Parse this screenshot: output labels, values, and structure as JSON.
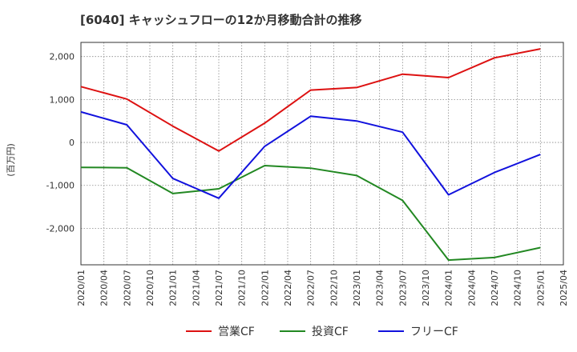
{
  "chart_data": {
    "type": "line",
    "title": "[6040]  キャッシュフローの12か月移動合計の推移",
    "ylabel": "(百万円)",
    "xlabel": "",
    "ylim": [
      -2850,
      2330
    ],
    "yticks": [
      2000,
      1000,
      0,
      -1000,
      -2000
    ],
    "ytick_labels": [
      "2,000",
      "1,000",
      "0",
      "-1,000",
      "-2,000"
    ],
    "categories": [
      "2020/01",
      "2020/04",
      "2020/07",
      "2020/10",
      "2021/01",
      "2021/04",
      "2021/07",
      "2021/10",
      "2022/01",
      "2022/04",
      "2022/07",
      "2022/10",
      "2023/01",
      "2023/04",
      "2023/07",
      "2023/10",
      "2024/01",
      "2024/04",
      "2024/07",
      "2024/10",
      "2025/01",
      "2025/04"
    ],
    "grid": true,
    "legend_position": "bottom",
    "series": [
      {
        "name": "営業CF",
        "color": "#dd1111",
        "points": [
          [
            0,
            1300
          ],
          [
            2,
            1010
          ],
          [
            4,
            380
          ],
          [
            6,
            -200
          ],
          [
            8,
            450
          ],
          [
            10,
            1220
          ],
          [
            12,
            1280
          ],
          [
            14,
            1590
          ],
          [
            16,
            1510
          ],
          [
            18,
            1970
          ],
          [
            20,
            2180
          ]
        ]
      },
      {
        "name": "投資CF",
        "color": "#228822",
        "points": [
          [
            0,
            -580
          ],
          [
            2,
            -590
          ],
          [
            4,
            -1190
          ],
          [
            6,
            -1080
          ],
          [
            8,
            -540
          ],
          [
            10,
            -600
          ],
          [
            12,
            -770
          ],
          [
            14,
            -1350
          ],
          [
            16,
            -2740
          ],
          [
            18,
            -2680
          ],
          [
            20,
            -2450
          ]
        ]
      },
      {
        "name": "フリーCF",
        "color": "#1111dd",
        "points": [
          [
            0,
            710
          ],
          [
            2,
            410
          ],
          [
            4,
            -840
          ],
          [
            6,
            -1300
          ],
          [
            8,
            -90
          ],
          [
            10,
            610
          ],
          [
            12,
            500
          ],
          [
            14,
            240
          ],
          [
            16,
            -1220
          ],
          [
            18,
            -700
          ],
          [
            20,
            -280
          ]
        ]
      }
    ]
  }
}
